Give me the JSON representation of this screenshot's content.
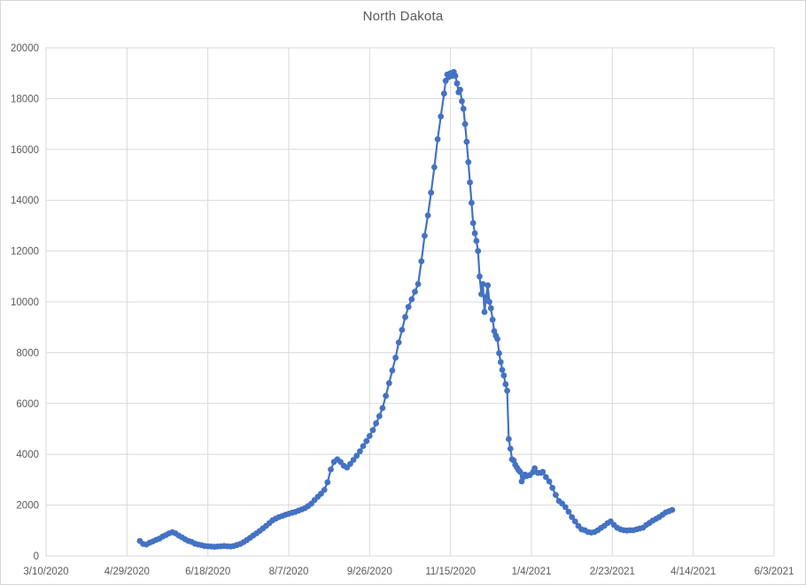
{
  "chart": {
    "title": "North Dakota",
    "background": "#ffffff",
    "frame_border_color": "#d7d7d7",
    "gridline_color": "#d9d9d9",
    "axis_text_color": "#595959",
    "title_color": "#595959"
  },
  "chart_data": {
    "type": "line",
    "title": "North Dakota",
    "xlabel": "",
    "ylabel": "",
    "x_unit": "days since 3/10/2020",
    "xlim": [
      0,
      450
    ],
    "ylim": [
      0,
      20000
    ],
    "grid": true,
    "legend": "none",
    "x_ticks": [
      0,
      50,
      100,
      150,
      200,
      250,
      300,
      350,
      400,
      450
    ],
    "x_tick_labels": [
      "3/10/2020",
      "4/29/2020",
      "6/18/2020",
      "8/7/2020",
      "9/26/2020",
      "11/15/2020",
      "1/4/2021",
      "2/23/2021",
      "4/14/2021",
      "6/3/2021"
    ],
    "y_ticks": [
      0,
      2000,
      4000,
      6000,
      8000,
      10000,
      12000,
      14000,
      16000,
      18000,
      20000
    ],
    "series": [
      {
        "name": "North Dakota",
        "color": "#4472C4",
        "marker": "circle",
        "points": [
          [
            58,
            590
          ],
          [
            60,
            470
          ],
          [
            62,
            450
          ],
          [
            64,
            520
          ],
          [
            66,
            570
          ],
          [
            68,
            630
          ],
          [
            70,
            680
          ],
          [
            72,
            760
          ],
          [
            74,
            820
          ],
          [
            76,
            890
          ],
          [
            78,
            930
          ],
          [
            80,
            890
          ],
          [
            82,
            800
          ],
          [
            84,
            730
          ],
          [
            86,
            650
          ],
          [
            88,
            590
          ],
          [
            90,
            550
          ],
          [
            92,
            480
          ],
          [
            94,
            450
          ],
          [
            96,
            420
          ],
          [
            98,
            390
          ],
          [
            100,
            380
          ],
          [
            102,
            370
          ],
          [
            104,
            360
          ],
          [
            106,
            370
          ],
          [
            108,
            380
          ],
          [
            110,
            390
          ],
          [
            112,
            380
          ],
          [
            114,
            370
          ],
          [
            116,
            390
          ],
          [
            118,
            430
          ],
          [
            120,
            470
          ],
          [
            122,
            540
          ],
          [
            124,
            620
          ],
          [
            126,
            710
          ],
          [
            128,
            800
          ],
          [
            130,
            890
          ],
          [
            132,
            980
          ],
          [
            134,
            1080
          ],
          [
            136,
            1180
          ],
          [
            138,
            1290
          ],
          [
            140,
            1400
          ],
          [
            142,
            1470
          ],
          [
            144,
            1530
          ],
          [
            146,
            1570
          ],
          [
            148,
            1620
          ],
          [
            150,
            1660
          ],
          [
            152,
            1700
          ],
          [
            154,
            1730
          ],
          [
            156,
            1780
          ],
          [
            158,
            1830
          ],
          [
            160,
            1880
          ],
          [
            162,
            1960
          ],
          [
            164,
            2060
          ],
          [
            166,
            2200
          ],
          [
            168,
            2330
          ],
          [
            170,
            2450
          ],
          [
            172,
            2600
          ],
          [
            174,
            2900
          ],
          [
            176,
            3400
          ],
          [
            178,
            3700
          ],
          [
            180,
            3800
          ],
          [
            182,
            3700
          ],
          [
            184,
            3550
          ],
          [
            186,
            3480
          ],
          [
            188,
            3620
          ],
          [
            190,
            3780
          ],
          [
            192,
            3940
          ],
          [
            194,
            4120
          ],
          [
            196,
            4320
          ],
          [
            198,
            4520
          ],
          [
            200,
            4720
          ],
          [
            202,
            4950
          ],
          [
            204,
            5220
          ],
          [
            206,
            5500
          ],
          [
            208,
            5820
          ],
          [
            210,
            6300
          ],
          [
            212,
            6800
          ],
          [
            214,
            7300
          ],
          [
            216,
            7800
          ],
          [
            218,
            8400
          ],
          [
            220,
            8900
          ],
          [
            222,
            9400
          ],
          [
            224,
            9800
          ],
          [
            226,
            10100
          ],
          [
            228,
            10400
          ],
          [
            230,
            10700
          ],
          [
            232,
            11600
          ],
          [
            234,
            12600
          ],
          [
            236,
            13400
          ],
          [
            238,
            14300
          ],
          [
            240,
            15300
          ],
          [
            242,
            16400
          ],
          [
            244,
            17300
          ],
          [
            246,
            18200
          ],
          [
            247,
            18700
          ],
          [
            248,
            18950
          ],
          [
            249,
            18850
          ],
          [
            250,
            19000
          ],
          [
            251,
            18900
          ],
          [
            252,
            19050
          ],
          [
            253,
            18900
          ],
          [
            254,
            18600
          ],
          [
            255,
            18250
          ],
          [
            256,
            18350
          ],
          [
            257,
            17900
          ],
          [
            258,
            17600
          ],
          [
            259,
            17000
          ],
          [
            260,
            16300
          ],
          [
            261,
            15500
          ],
          [
            262,
            14700
          ],
          [
            263,
            13900
          ],
          [
            264,
            13100
          ],
          [
            265,
            12700
          ],
          [
            266,
            12400
          ],
          [
            267,
            12000
          ],
          [
            268,
            11000
          ],
          [
            269,
            10300
          ],
          [
            270,
            10700
          ],
          [
            271,
            9600
          ],
          [
            272,
            10200
          ],
          [
            273,
            10650
          ],
          [
            274,
            10000
          ],
          [
            275,
            9750
          ],
          [
            276,
            9300
          ],
          [
            277,
            8850
          ],
          [
            278,
            8670
          ],
          [
            279,
            8540
          ],
          [
            280,
            7980
          ],
          [
            281,
            7630
          ],
          [
            282,
            7320
          ],
          [
            283,
            7100
          ],
          [
            284,
            6760
          ],
          [
            285,
            6500
          ],
          [
            286,
            4600
          ],
          [
            287,
            4220
          ],
          [
            288,
            3800
          ],
          [
            289,
            3760
          ],
          [
            290,
            3590
          ],
          [
            291,
            3480
          ],
          [
            292,
            3380
          ],
          [
            293,
            3310
          ],
          [
            294,
            2930
          ],
          [
            295,
            3100
          ],
          [
            296,
            3200
          ],
          [
            297,
            3140
          ],
          [
            299,
            3180
          ],
          [
            301,
            3300
          ],
          [
            302,
            3450
          ],
          [
            304,
            3270
          ],
          [
            306,
            3270
          ],
          [
            307,
            3310
          ],
          [
            309,
            3100
          ],
          [
            311,
            2930
          ],
          [
            313,
            2680
          ],
          [
            315,
            2400
          ],
          [
            317,
            2160
          ],
          [
            319,
            2060
          ],
          [
            321,
            1920
          ],
          [
            323,
            1740
          ],
          [
            325,
            1530
          ],
          [
            327,
            1360
          ],
          [
            329,
            1180
          ],
          [
            331,
            1045
          ],
          [
            333,
            1010
          ],
          [
            335,
            940
          ],
          [
            337,
            920
          ],
          [
            339,
            940
          ],
          [
            341,
            1010
          ],
          [
            343,
            1100
          ],
          [
            345,
            1180
          ],
          [
            347,
            1290
          ],
          [
            349,
            1360
          ],
          [
            351,
            1220
          ],
          [
            353,
            1110
          ],
          [
            355,
            1045
          ],
          [
            357,
            1010
          ],
          [
            359,
            1000
          ],
          [
            361,
            1010
          ],
          [
            363,
            1010
          ],
          [
            365,
            1045
          ],
          [
            367,
            1080
          ],
          [
            369,
            1110
          ],
          [
            371,
            1220
          ],
          [
            373,
            1300
          ],
          [
            375,
            1390
          ],
          [
            377,
            1460
          ],
          [
            379,
            1530
          ],
          [
            381,
            1620
          ],
          [
            383,
            1710
          ],
          [
            385,
            1760
          ],
          [
            387,
            1810
          ]
        ]
      }
    ]
  }
}
